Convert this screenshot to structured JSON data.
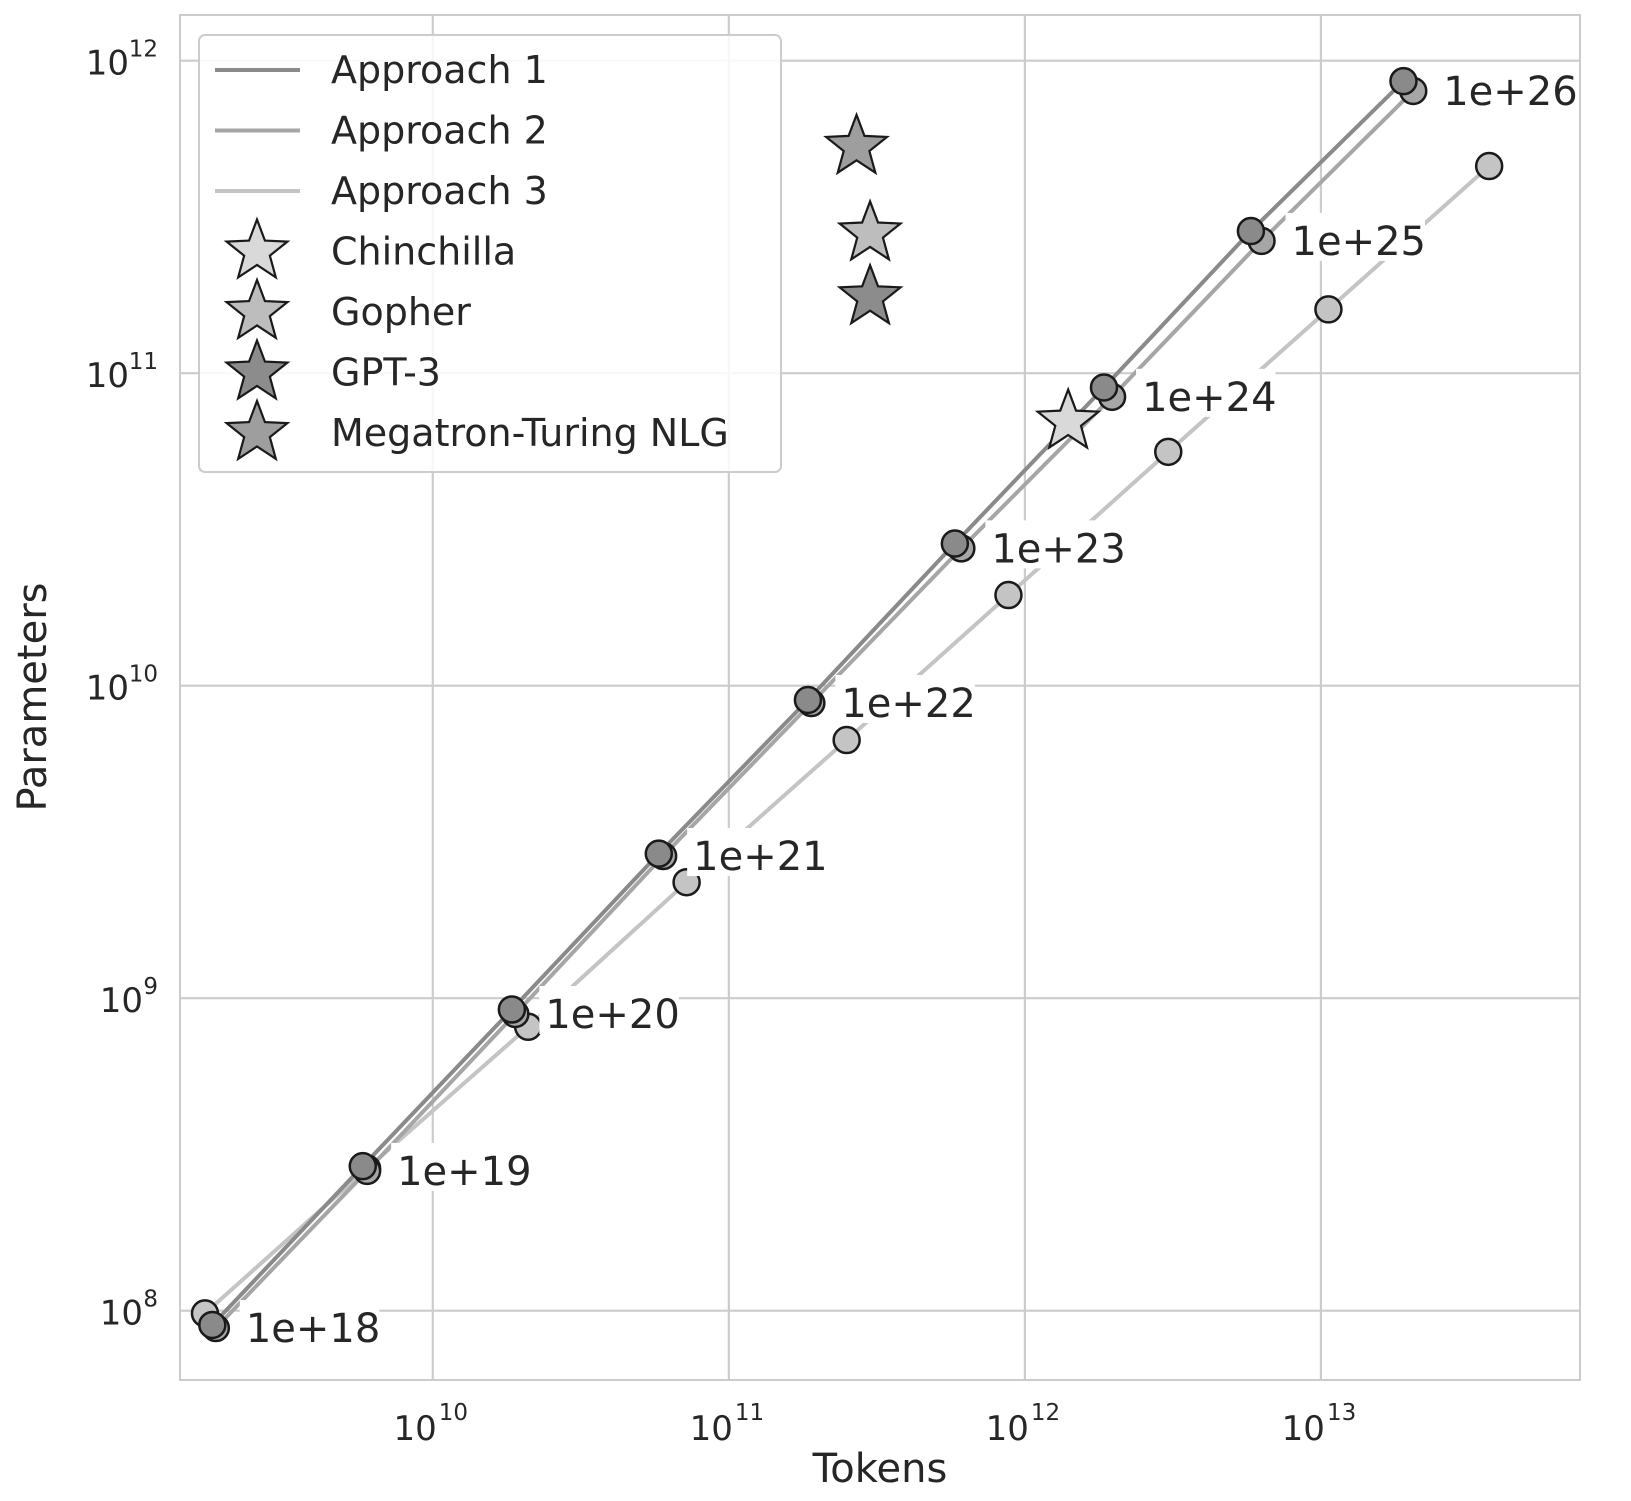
{
  "chart_data": {
    "type": "scatter",
    "xlabel": "Tokens",
    "ylabel": "Parameters",
    "x_scale": "log",
    "y_scale": "log",
    "xlim": [
      1400000000.0,
      75000000000000.0
    ],
    "ylim": [
      60000000.0,
      1400000000000.0
    ],
    "grid": true,
    "legend_position": "top-left",
    "x_ticks": [
      {
        "value": 10000000000.0,
        "base": "10",
        "exp": "10"
      },
      {
        "value": 100000000000.0,
        "base": "10",
        "exp": "11"
      },
      {
        "value": 1000000000000.0,
        "base": "10",
        "exp": "12"
      },
      {
        "value": 10000000000000.0,
        "base": "10",
        "exp": "13"
      }
    ],
    "y_ticks": [
      {
        "value": 100000000.0,
        "base": "10",
        "exp": "8"
      },
      {
        "value": 1000000000.0,
        "base": "10",
        "exp": "9"
      },
      {
        "value": 10000000000.0,
        "base": "10",
        "exp": "10"
      },
      {
        "value": 100000000000.0,
        "base": "10",
        "exp": "11"
      },
      {
        "value": 1000000000000.0,
        "base": "10",
        "exp": "12"
      }
    ],
    "series": [
      {
        "name": "Approach 1",
        "color": "#8a8a8a",
        "points": [
          [
            1800000000.0,
            90000000.0
          ],
          [
            5800000000.0,
            290000000.0
          ],
          [
            18500000000.0,
            920000000.0
          ],
          [
            58000000000.0,
            2900000000.0
          ],
          [
            185000000000.0,
            9000000000.0
          ],
          [
            580000000000.0,
            28500000000.0
          ],
          [
            1850000000000.0,
            90000000000.0
          ],
          [
            5800000000000.0,
            285000000000.0
          ],
          [
            19000000000000.0,
            860000000000.0
          ]
        ]
      },
      {
        "name": "Approach 2",
        "color": "#a6a6a6",
        "points": [
          [
            1850000000.0,
            88000000.0
          ],
          [
            6000000000.0,
            280000000.0
          ],
          [
            19000000000.0,
            890000000.0
          ],
          [
            60000000000.0,
            2850000000.0
          ],
          [
            190000000000.0,
            8800000000.0
          ],
          [
            610000000000.0,
            27500000000.0
          ],
          [
            1970000000000.0,
            84000000000.0
          ],
          [
            6300000000000.0,
            265000000000.0
          ],
          [
            20500000000000.0,
            800000000000.0
          ]
        ]
      },
      {
        "name": "Approach 3",
        "color": "#c4c4c4",
        "points": [
          [
            1700000000.0,
            98000000.0
          ],
          [
            6000000000.0,
            285000000.0
          ],
          [
            21000000000.0,
            810000000.0
          ],
          [
            72000000000.0,
            2350000000.0
          ],
          [
            250000000000.0,
            6700000000.0
          ],
          [
            880000000000.0,
            19500000000.0
          ],
          [
            3050000000000.0,
            56000000000.0
          ],
          [
            10600000000000.0,
            160000000000.0
          ],
          [
            37000000000000.0,
            460000000000.0
          ]
        ]
      }
    ],
    "flop_labels": [
      {
        "text": "1e+18",
        "x": 1850000000.0,
        "y": 88000000.0
      },
      {
        "text": "1e+19",
        "x": 6000000000.0,
        "y": 280000000.0
      },
      {
        "text": "1e+20",
        "x": 19000000000.0,
        "y": 890000000.0
      },
      {
        "text": "1e+21",
        "x": 60000000000.0,
        "y": 2850000000.0
      },
      {
        "text": "1e+22",
        "x": 190000000000.0,
        "y": 8800000000.0
      },
      {
        "text": "1e+23",
        "x": 610000000000.0,
        "y": 27500000000.0
      },
      {
        "text": "1e+24",
        "x": 1970000000000.0,
        "y": 84000000000.0
      },
      {
        "text": "1e+25",
        "x": 6300000000000.0,
        "y": 265000000000.0
      },
      {
        "text": "1e+26",
        "x": 20500000000000.0,
        "y": 800000000000.0
      }
    ],
    "models": [
      {
        "name": "Chinchilla",
        "x": 1400000000000.0,
        "y": 70000000000.0,
        "color": "#d9d9d9"
      },
      {
        "name": "Gopher",
        "x": 300000000000.0,
        "y": 280000000000.0,
        "color": "#bdbdbd"
      },
      {
        "name": "GPT-3",
        "x": 300000000000.0,
        "y": 175000000000.0,
        "color": "#8c8c8c"
      },
      {
        "name": "Megatron-Turing NLG",
        "x": 270000000000.0,
        "y": 530000000000.0,
        "color": "#9e9e9e"
      }
    ]
  }
}
